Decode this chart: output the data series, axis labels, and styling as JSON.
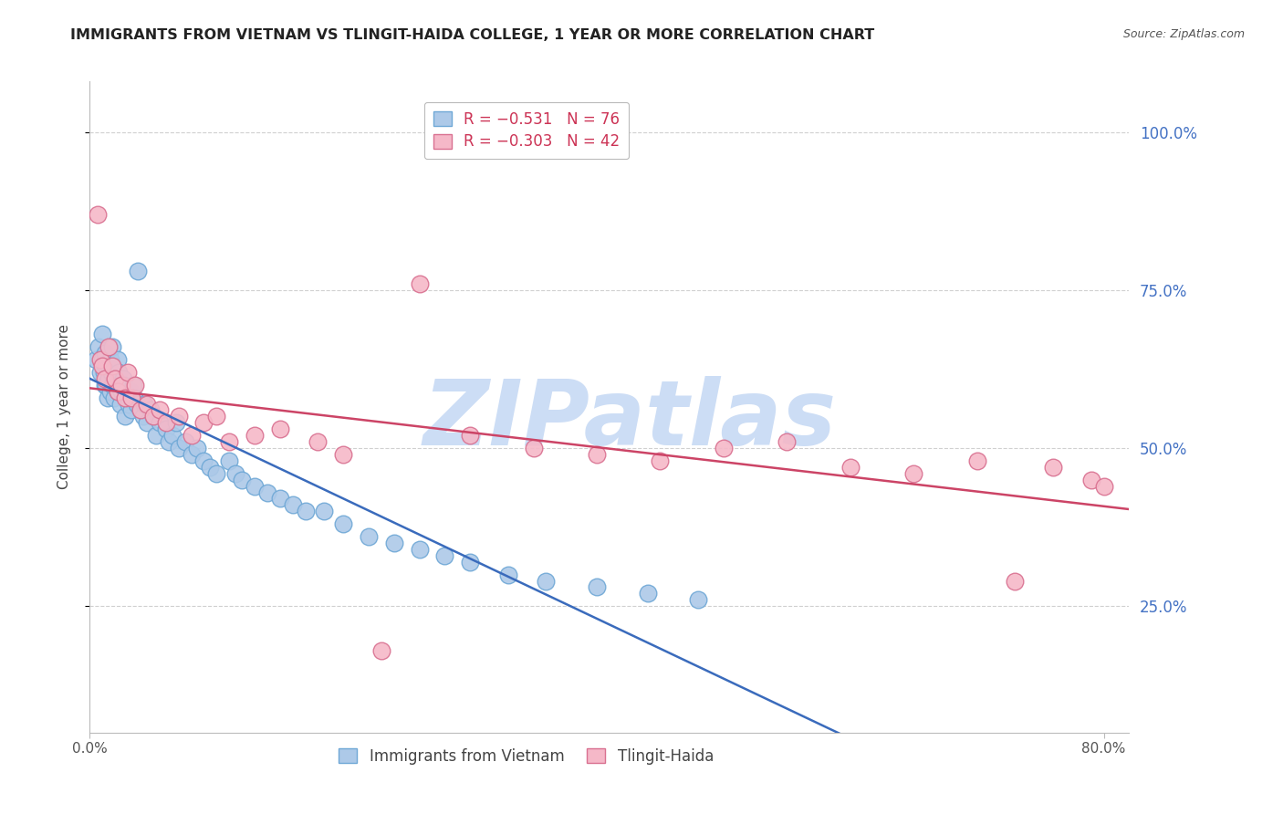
{
  "title": "IMMIGRANTS FROM VIETNAM VS TLINGIT-HAIDA COLLEGE, 1 YEAR OR MORE CORRELATION CHART",
  "source": "Source: ZipAtlas.com",
  "ylabel": "College, 1 year or more",
  "ytick_labels": [
    "100.0%",
    "75.0%",
    "50.0%",
    "25.0%"
  ],
  "ytick_positions": [
    1.0,
    0.75,
    0.5,
    0.25
  ],
  "xlim": [
    0.0,
    0.82
  ],
  "ylim": [
    0.05,
    1.08
  ],
  "legend_r1": "R = −0.531",
  "legend_n1": "N = 76",
  "legend_r2": "R = −0.303",
  "legend_n2": "N = 42",
  "series1_color": "#adc9e8",
  "series1_edge": "#6fa8d6",
  "series1_line": "#3a6bbc",
  "series2_color": "#f5b8c8",
  "series2_edge": "#d97090",
  "series2_line": "#cc4466",
  "watermark": "ZIPatlas",
  "watermark_color": "#ccddf5",
  "background_color": "#ffffff",
  "title_fontsize": 11.5,
  "source_fontsize": 9,
  "axis_label_color": "#4472c4",
  "grid_color": "#d0d0d0",
  "series1_label": "Immigrants from Vietnam",
  "series2_label": "Tlingit-Haida",
  "series1_x": [
    0.005,
    0.007,
    0.008,
    0.01,
    0.01,
    0.011,
    0.012,
    0.012,
    0.013,
    0.013,
    0.014,
    0.015,
    0.015,
    0.016,
    0.016,
    0.017,
    0.018,
    0.018,
    0.019,
    0.02,
    0.021,
    0.022,
    0.022,
    0.023,
    0.024,
    0.025,
    0.026,
    0.027,
    0.028,
    0.03,
    0.031,
    0.032,
    0.033,
    0.034,
    0.035,
    0.037,
    0.038,
    0.04,
    0.042,
    0.043,
    0.045,
    0.048,
    0.05,
    0.052,
    0.055,
    0.06,
    0.062,
    0.065,
    0.068,
    0.07,
    0.075,
    0.08,
    0.085,
    0.09,
    0.095,
    0.1,
    0.11,
    0.115,
    0.12,
    0.13,
    0.14,
    0.15,
    0.16,
    0.17,
    0.185,
    0.2,
    0.22,
    0.24,
    0.26,
    0.28,
    0.3,
    0.33,
    0.36,
    0.4,
    0.44,
    0.48
  ],
  "series1_y": [
    0.64,
    0.66,
    0.62,
    0.68,
    0.64,
    0.62,
    0.6,
    0.65,
    0.63,
    0.6,
    0.58,
    0.61,
    0.63,
    0.59,
    0.64,
    0.62,
    0.6,
    0.66,
    0.58,
    0.61,
    0.6,
    0.59,
    0.64,
    0.62,
    0.57,
    0.59,
    0.61,
    0.6,
    0.55,
    0.58,
    0.57,
    0.59,
    0.56,
    0.6,
    0.58,
    0.57,
    0.78,
    0.56,
    0.55,
    0.57,
    0.54,
    0.56,
    0.55,
    0.52,
    0.54,
    0.53,
    0.51,
    0.52,
    0.54,
    0.5,
    0.51,
    0.49,
    0.5,
    0.48,
    0.47,
    0.46,
    0.48,
    0.46,
    0.45,
    0.44,
    0.43,
    0.42,
    0.41,
    0.4,
    0.4,
    0.38,
    0.36,
    0.35,
    0.34,
    0.33,
    0.32,
    0.3,
    0.29,
    0.28,
    0.27,
    0.26
  ],
  "series2_x": [
    0.006,
    0.008,
    0.01,
    0.012,
    0.015,
    0.018,
    0.02,
    0.022,
    0.025,
    0.028,
    0.03,
    0.033,
    0.036,
    0.04,
    0.045,
    0.05,
    0.055,
    0.06,
    0.07,
    0.08,
    0.09,
    0.1,
    0.11,
    0.13,
    0.15,
    0.18,
    0.2,
    0.23,
    0.26,
    0.3,
    0.35,
    0.4,
    0.45,
    0.5,
    0.55,
    0.6,
    0.65,
    0.7,
    0.73,
    0.76,
    0.79,
    0.8
  ],
  "series2_y": [
    0.87,
    0.64,
    0.63,
    0.61,
    0.66,
    0.63,
    0.61,
    0.59,
    0.6,
    0.58,
    0.62,
    0.58,
    0.6,
    0.56,
    0.57,
    0.55,
    0.56,
    0.54,
    0.55,
    0.52,
    0.54,
    0.55,
    0.51,
    0.52,
    0.53,
    0.51,
    0.49,
    0.18,
    0.76,
    0.52,
    0.5,
    0.49,
    0.48,
    0.5,
    0.51,
    0.47,
    0.46,
    0.48,
    0.29,
    0.47,
    0.45,
    0.44
  ]
}
